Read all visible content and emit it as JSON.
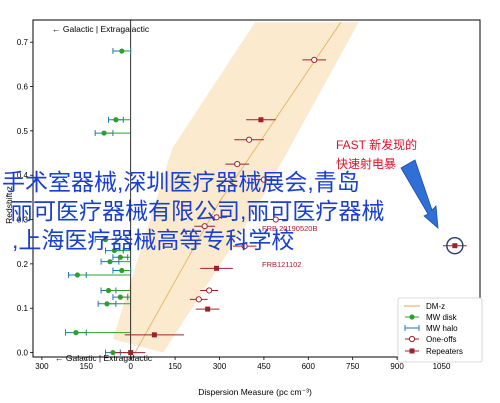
{
  "chart_data": {
    "type": "scatter",
    "title": "",
    "xlabel": "Dispersion Measure (pc cm⁻³)",
    "ylabel": "Redshift z",
    "xlim": [
      -330,
      1180
    ],
    "ylim": [
      -0.01,
      0.75
    ],
    "x_ticks": [
      -300,
      -150,
      0,
      150,
      300,
      450,
      600,
      750,
      900,
      1050
    ],
    "x_tick_labels": [
      "300",
      "150",
      "0",
      "150",
      "300",
      "450",
      "600",
      "750",
      "900",
      "1050"
    ],
    "y_ticks": [
      0.0,
      0.1,
      0.2,
      0.3,
      0.4,
      0.5,
      0.6,
      0.7
    ],
    "y_tick_labels": [
      "0.0",
      "0.1",
      "0.2",
      "0.3",
      "0.4",
      "0.5",
      "0.6",
      "0.7"
    ],
    "grid": false,
    "legend_position": "bottom-right",
    "top_arrow_label": "← Galactic | Extragalactic",
    "bottom_arrow_label": "← Galactic | Extragalactic",
    "colors": {
      "dmz_line": "#e6b86a",
      "dmz_band": "#fbe3bf",
      "mw_disk": "#2ca02c",
      "mw_halo": "#1f77b4",
      "one_offs": "#a0202a",
      "repeaters": "#a0202a",
      "annotation": "#e0102a",
      "arrow": "#2f6fd6",
      "overlay": "#1a40d0"
    },
    "dmz": {
      "name": "DM-z",
      "line": [
        [
          15,
          0.0
        ],
        [
          300,
          0.34
        ],
        [
          710,
          0.745
        ]
      ],
      "band_lower": [
        [
          110,
          0.0
        ],
        [
          420,
          0.32
        ],
        [
          770,
          0.745
        ]
      ],
      "band_upper": [
        [
          -60,
          0.03
        ],
        [
          140,
          0.46
        ],
        [
          420,
          0.745
        ]
      ]
    },
    "mw_disk": {
      "name": "MW disk",
      "points": [
        {
          "x": -30,
          "y": 0.68,
          "xerr": 0
        },
        {
          "x": -50,
          "y": 0.525,
          "xerr": 0
        },
        {
          "x": -90,
          "y": 0.495,
          "xerr": 0
        },
        {
          "x": -85,
          "y": 0.255,
          "xerr": 0
        },
        {
          "x": -55,
          "y": 0.23,
          "xerr": 0
        },
        {
          "x": -35,
          "y": 0.215,
          "xerr": 0
        },
        {
          "x": -70,
          "y": 0.205,
          "xerr": 0
        },
        {
          "x": -30,
          "y": 0.185,
          "xerr": 0
        },
        {
          "x": -180,
          "y": 0.175,
          "xerr": 0
        },
        {
          "x": -75,
          "y": 0.14,
          "xerr": 0
        },
        {
          "x": -35,
          "y": 0.125,
          "xerr": 0
        },
        {
          "x": -80,
          "y": 0.11,
          "xerr": 0
        },
        {
          "x": -185,
          "y": 0.045,
          "xerr": 0
        },
        {
          "x": -60,
          "y": 0.0,
          "xerr": 0
        }
      ]
    },
    "mw_halo": {
      "name": "MW halo",
      "points": [
        {
          "x": -30,
          "y": 0.68,
          "xerr": 30
        },
        {
          "x": -50,
          "y": 0.525,
          "xerr": 25
        },
        {
          "x": -90,
          "y": 0.495,
          "xerr": 30
        },
        {
          "x": -85,
          "y": 0.255,
          "xerr": 35
        },
        {
          "x": -55,
          "y": 0.23,
          "xerr": 30
        },
        {
          "x": -35,
          "y": 0.215,
          "xerr": 25
        },
        {
          "x": -70,
          "y": 0.205,
          "xerr": 30
        },
        {
          "x": -30,
          "y": 0.185,
          "xerr": 30
        },
        {
          "x": -180,
          "y": 0.175,
          "xerr": 30
        },
        {
          "x": -75,
          "y": 0.14,
          "xerr": 25
        },
        {
          "x": -35,
          "y": 0.125,
          "xerr": 25
        },
        {
          "x": -80,
          "y": 0.11,
          "xerr": 30
        },
        {
          "x": -185,
          "y": 0.045,
          "xerr": 35
        },
        {
          "x": -60,
          "y": 0.0,
          "xerr": 25
        }
      ]
    },
    "one_offs": {
      "name": "One-offs",
      "points": [
        {
          "x": 620,
          "y": 0.66,
          "xerr": 40
        },
        {
          "x": 400,
          "y": 0.48,
          "xerr": 50
        },
        {
          "x": 360,
          "y": 0.425,
          "xerr": 40
        },
        {
          "x": 450,
          "y": 0.39,
          "xerr": 40
        },
        {
          "x": 490,
          "y": 0.3,
          "xerr": 40
        },
        {
          "x": 290,
          "y": 0.305,
          "xerr": 35
        },
        {
          "x": 250,
          "y": 0.285,
          "xerr": 35
        },
        {
          "x": 385,
          "y": 0.24,
          "xerr": 40
        },
        {
          "x": 265,
          "y": 0.14,
          "xerr": 30
        },
        {
          "x": 230,
          "y": 0.12,
          "xerr": 30
        }
      ]
    },
    "repeaters": {
      "name": "Repeaters",
      "points": [
        {
          "x": 440,
          "y": 0.525,
          "xerr": 50
        },
        {
          "x": 1095,
          "y": 0.241,
          "xerr": 40
        },
        {
          "x": 290,
          "y": 0.19,
          "xerr": 55
        },
        {
          "x": 260,
          "y": 0.098,
          "xerr": 40
        },
        {
          "x": 80,
          "y": 0.04,
          "xerr": 100
        },
        {
          "x": 0,
          "y": 0.0,
          "xerr": 50
        }
      ]
    },
    "annotations": {
      "fast_line1": "FAST 新发现的",
      "fast_line2": "快速射电暴",
      "frb_upper": "FRB 20190520B",
      "frb121102": "FRB121102"
    },
    "highlight": {
      "x": 1095,
      "y": 0.241
    }
  },
  "overlay_text": {
    "line1": "手术室器械,深圳医疗器械展会,青岛",
    "line2": "丽可医疗器械有限公司,丽可医疗器械",
    "line3": ",上海医疗器械高等专科学校"
  }
}
